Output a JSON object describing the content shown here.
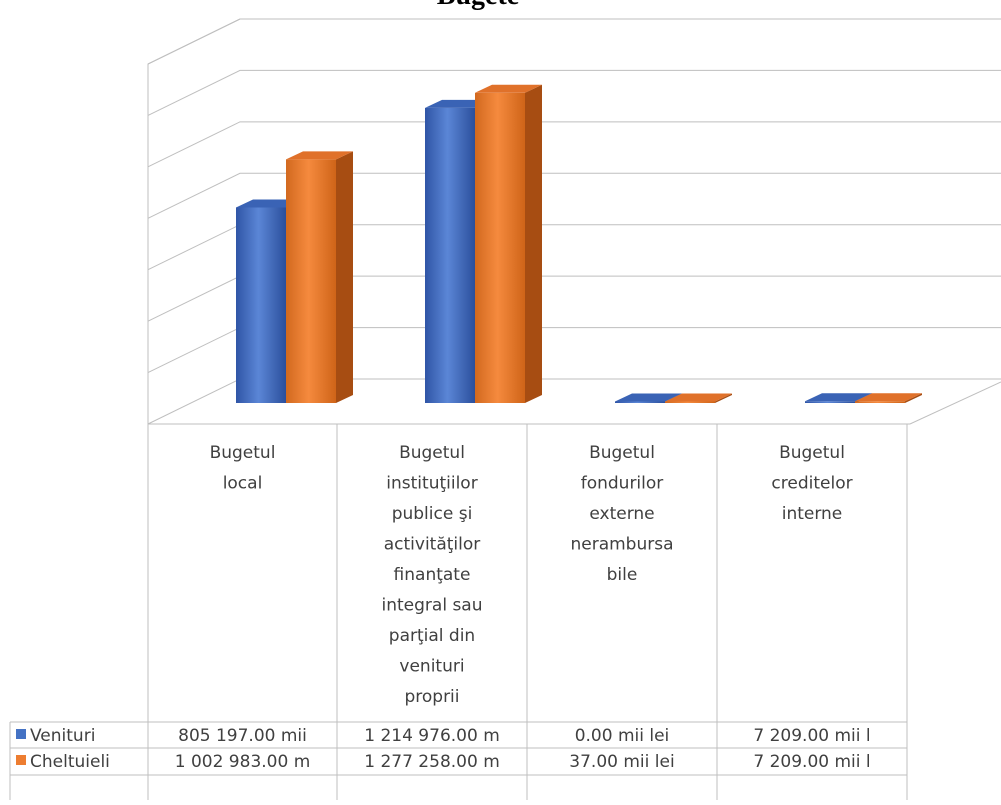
{
  "chart_data": {
    "type": "bar",
    "title": "Bugete",
    "categories": [
      "Bugetul local",
      "Bugetul instituţiilor publice şi activităţilor finanţate integral sau parţial din venituri proprii",
      "Bugetul fondurilor externe nerambursabile",
      "Bugetul creditelor interne"
    ],
    "category_lines": [
      [
        "Bugetul",
        "local"
      ],
      [
        "Bugetul",
        "instituţiilor",
        "publice şi",
        "activităţilor",
        "finanţate",
        "integral sau",
        "parţial din",
        "venituri",
        "proprii"
      ],
      [
        "Bugetul",
        "fondurilor",
        "externe",
        "nerambursa",
        "bile"
      ],
      [
        "Bugetul",
        "creditelor",
        "interne"
      ]
    ],
    "series": [
      {
        "name": "Venituri",
        "color": "#4472C4",
        "values": [
          805197.0,
          1214976.0,
          0.0,
          7209.0
        ],
        "labels": [
          "805 197.00 mii",
          "1 214 976.00 m",
          "0.00 mii lei",
          "7 209.00 mii l"
        ]
      },
      {
        "name": "Cheltuieli",
        "color": "#ED7D31",
        "values": [
          1002983.0,
          1277258.0,
          37.0,
          7209.0
        ],
        "labels": [
          "1 002 983.00 m",
          "1 277 258.00 m",
          "37.00 mii lei",
          "7 209.00 mii l"
        ]
      }
    ],
    "ylim": [
      0,
      1400000
    ],
    "grid": true,
    "data_table": true,
    "legend": "data-table"
  }
}
